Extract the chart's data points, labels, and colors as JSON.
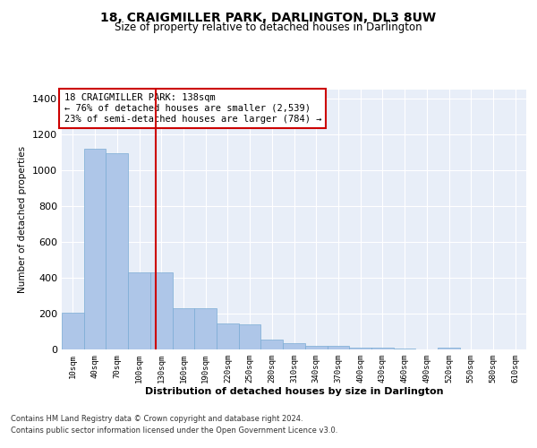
{
  "title": "18, CRAIGMILLER PARK, DARLINGTON, DL3 8UW",
  "subtitle": "Size of property relative to detached houses in Darlington",
  "xlabel": "Distribution of detached houses by size in Darlington",
  "ylabel": "Number of detached properties",
  "bar_labels": [
    "10sqm",
    "40sqm",
    "70sqm",
    "100sqm",
    "130sqm",
    "160sqm",
    "190sqm",
    "220sqm",
    "250sqm",
    "280sqm",
    "310sqm",
    "340sqm",
    "370sqm",
    "400sqm",
    "430sqm",
    "460sqm",
    "490sqm",
    "520sqm",
    "550sqm",
    "580sqm",
    "610sqm"
  ],
  "bar_values": [
    205,
    1120,
    1095,
    430,
    430,
    230,
    228,
    143,
    140,
    55,
    35,
    22,
    20,
    12,
    11,
    4,
    0,
    10,
    0,
    0,
    0
  ],
  "bar_color": "#AEC6E8",
  "bar_edgecolor": "#7AACD4",
  "property_size": 138,
  "property_label": "18 CRAIGMILLER PARK: 138sqm",
  "annotation_line1": "← 76% of detached houses are smaller (2,539)",
  "annotation_line2": "23% of semi-detached houses are larger (784) →",
  "red_line_color": "#CC0000",
  "annotation_box_color": "#CC0000",
  "ylim": [
    0,
    1450
  ],
  "yticks": [
    0,
    200,
    400,
    600,
    800,
    1000,
    1200,
    1400
  ],
  "footnote1": "Contains HM Land Registry data © Crown copyright and database right 2024.",
  "footnote2": "Contains public sector information licensed under the Open Government Licence v3.0.",
  "bg_color": "#E8EEF8",
  "fig_bg_color": "#FFFFFF"
}
